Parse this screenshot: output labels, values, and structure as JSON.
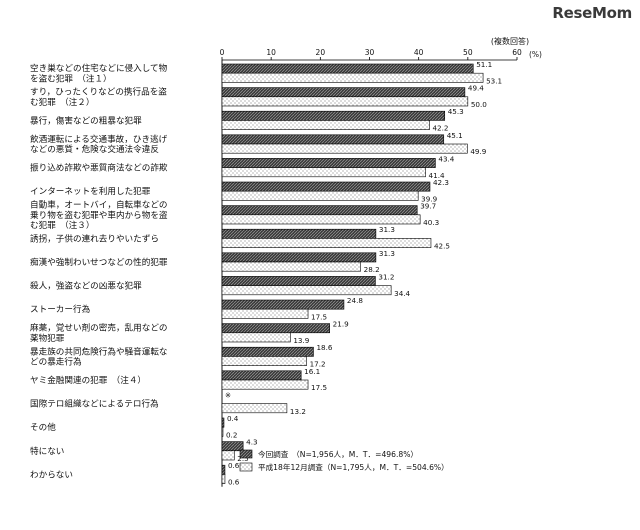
{
  "watermark": "ReseMom",
  "chart_data": {
    "type": "bar",
    "orientation": "horizontal",
    "note": "(複数回答)",
    "unit": "(%)",
    "xlim": [
      0,
      60
    ],
    "ticks": [
      0,
      10,
      20,
      30,
      40,
      50,
      60
    ],
    "categories": [
      [
        "空き巣などの住宅などに侵入して物",
        "を盗む犯罪　（注１）"
      ],
      [
        "すり，ひったくりなどの携行品を盗",
        "む犯罪　（注２）"
      ],
      [
        "暴行，傷害などの粗暴な犯罪"
      ],
      [
        "飲酒運転による交通事故，ひき逃げ",
        "などの悪質・危険な交通法令違反"
      ],
      [
        "振り込め詐欺や悪質商法などの詐欺"
      ],
      [
        "インターネットを利用した犯罪"
      ],
      [
        "自動車，オートバイ，自転車などの",
        "乗り物を盗む犯罪や車内から物を盗",
        "む犯罪　（注３）"
      ],
      [
        "誘拐，子供の連れ去りやいたずら"
      ],
      [
        "痴漢や強制わいせつなどの性的犯罪"
      ],
      [
        "殺人，強盗などの凶悪な犯罪"
      ],
      [
        "ストーカー行為"
      ],
      [
        "麻薬，覚せい剤の密売，乱用などの",
        "薬物犯罪"
      ],
      [
        "暴走族の共同危険行為や騒音運転な",
        "どの暴走行為"
      ],
      [
        "ヤミ金融関連の犯罪　（注４）"
      ],
      [
        "国際テロ組織などによるテロ行為"
      ],
      [
        "その他"
      ],
      [
        "特にない"
      ],
      [
        "わからない"
      ]
    ],
    "series": [
      {
        "name": "今回調査　（N=1,956人，M．T．=496.8%）",
        "values": [
          51.1,
          49.4,
          45.3,
          45.1,
          43.4,
          42.3,
          39.7,
          31.3,
          31.3,
          31.2,
          24.8,
          21.9,
          18.6,
          16.1,
          null,
          0.4,
          4.3,
          0.6
        ],
        "labels": [
          "51.1",
          "49.4",
          "45.3",
          "45.1",
          "43.4",
          "42.3",
          "39.7",
          "31.3",
          "31.3",
          "31.2",
          "24.8",
          "21.9",
          "18.6",
          "16.1",
          "※",
          "0.4",
          "4.3",
          "0.6"
        ]
      },
      {
        "name": "平成18年12月調査（N=1,795人，M．T．=504.6%）",
        "values": [
          53.1,
          50.0,
          42.2,
          49.9,
          41.4,
          39.9,
          40.3,
          42.5,
          28.2,
          34.4,
          17.5,
          13.9,
          17.2,
          17.5,
          13.2,
          0.2,
          2.5,
          0.6
        ],
        "labels": [
          "53.1",
          "50.0",
          "42.2",
          "49.9",
          "41.4",
          "39.9",
          "40.3",
          "42.5",
          "28.2",
          "34.4",
          "17.5",
          "13.9",
          "17.2",
          "17.5",
          "13.2",
          "0.2",
          "2.5",
          "0.6"
        ]
      }
    ],
    "legend_position": "bottom-right",
    "colors": {
      "current": "#2a2a2a",
      "previous": "#ffffff",
      "stroke": "#000000"
    }
  }
}
